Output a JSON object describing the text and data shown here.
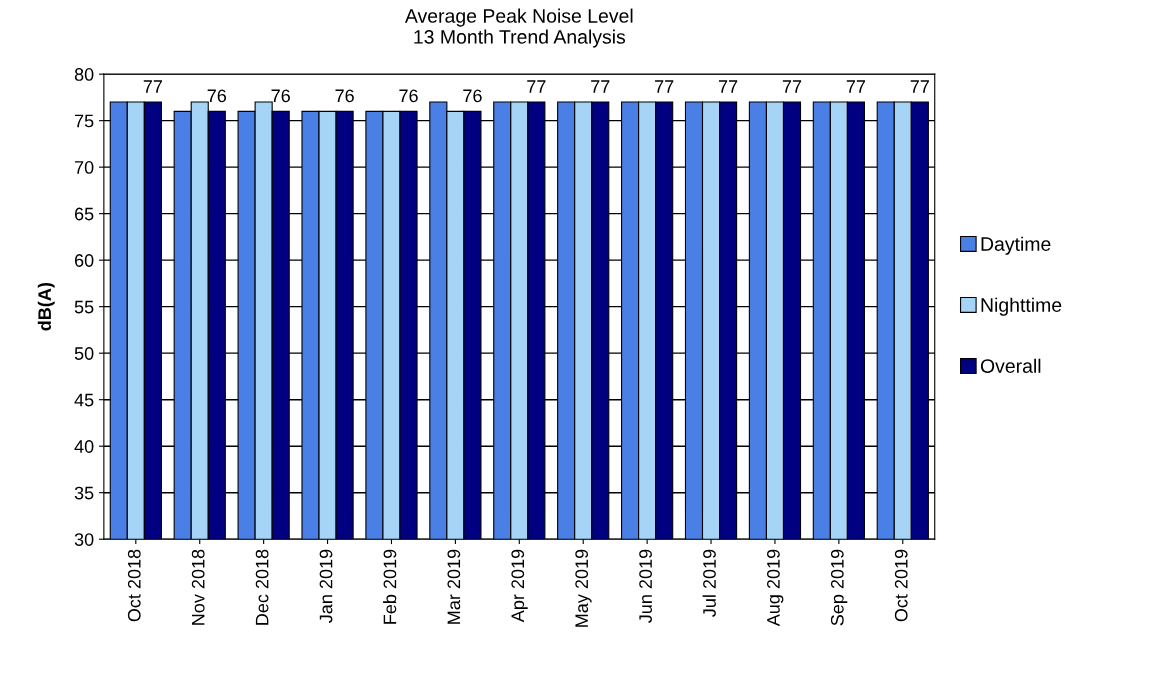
{
  "chart_data": {
    "type": "bar",
    "title": "Average Peak Noise Level\n13 Month Trend Analysis",
    "ylabel": "dB(A)",
    "categories": [
      "Oct 2018",
      "Nov 2018",
      "Dec 2018",
      "Jan 2019",
      "Feb 2019",
      "Mar 2019",
      "Apr 2019",
      "May 2019",
      "Jun 2019",
      "Jul 2019",
      "Aug 2019",
      "Sep 2019",
      "Oct 2019"
    ],
    "series": [
      {
        "name": "Daytime",
        "color": "#4a7fe6",
        "values": [
          77,
          76,
          76,
          76,
          76,
          77,
          77,
          77,
          77,
          77,
          77,
          77,
          77
        ]
      },
      {
        "name": "Nighttime",
        "color": "#a6d4f7",
        "values": [
          77,
          77,
          77,
          76,
          76,
          76,
          77,
          77,
          77,
          77,
          77,
          77,
          77
        ]
      },
      {
        "name": "Overall",
        "color": "#000080",
        "values": [
          77,
          76,
          76,
          76,
          76,
          76,
          77,
          77,
          77,
          77,
          77,
          77,
          77
        ],
        "value_labels": [
          "77",
          "76",
          "76",
          "76",
          "76",
          "76",
          "77",
          "77",
          "77",
          "77",
          "77",
          "77",
          "77"
        ]
      }
    ],
    "ylim": [
      30,
      80
    ],
    "yticks": [
      30,
      35,
      40,
      45,
      50,
      55,
      60,
      65,
      70,
      75,
      80
    ],
    "grid": "y",
    "legend": "right"
  }
}
